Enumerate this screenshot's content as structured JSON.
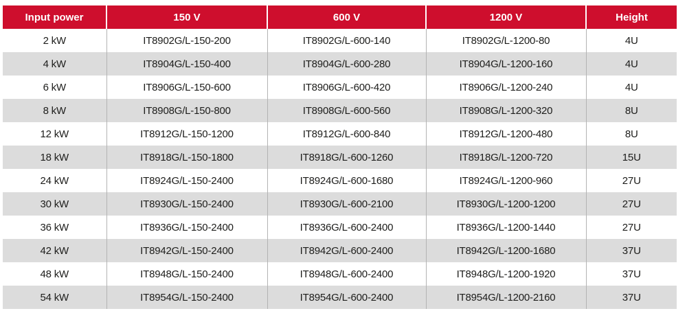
{
  "table": {
    "colors": {
      "header_bg": "#ce0e2d",
      "header_text": "#ffffff",
      "row_alt_bg": "#dcdcdc",
      "divider": "#b3b3b3",
      "body_text": "#1d1d1b"
    },
    "columns": [
      {
        "key": "power",
        "label": "Input power"
      },
      {
        "key": "v150",
        "label": "150 V"
      },
      {
        "key": "v600",
        "label": "600 V"
      },
      {
        "key": "v1200",
        "label": "1200 V"
      },
      {
        "key": "height",
        "label": "Height"
      }
    ],
    "rows": [
      {
        "power": "2 kW",
        "v150": "IT8902G/L-150-200",
        "v600": "IT8902G/L-600-140",
        "v1200": "IT8902G/L-1200-80",
        "height": "4U"
      },
      {
        "power": "4 kW",
        "v150": "IT8904G/L-150-400",
        "v600": "IT8904G/L-600-280",
        "v1200": "IT8904G/L-1200-160",
        "height": "4U"
      },
      {
        "power": "6 kW",
        "v150": "IT8906G/L-150-600",
        "v600": "IT8906G/L-600-420",
        "v1200": "IT8906G/L-1200-240",
        "height": "4U"
      },
      {
        "power": "8 kW",
        "v150": "IT8908G/L-150-800",
        "v600": "IT8908G/L-600-560",
        "v1200": "IT8908G/L-1200-320",
        "height": "8U"
      },
      {
        "power": "12 kW",
        "v150": "IT8912G/L-150-1200",
        "v600": "IT8912G/L-600-840",
        "v1200": "IT8912G/L-1200-480",
        "height": "8U"
      },
      {
        "power": "18 kW",
        "v150": "IT8918G/L-150-1800",
        "v600": "IT8918G/L-600-1260",
        "v1200": "IT8918G/L-1200-720",
        "height": "15U"
      },
      {
        "power": "24 kW",
        "v150": "IT8924G/L-150-2400",
        "v600": "IT8924G/L-600-1680",
        "v1200": "IT8924G/L-1200-960",
        "height": "27U"
      },
      {
        "power": "30 kW",
        "v150": "IT8930G/L-150-2400",
        "v600": "IT8930G/L-600-2100",
        "v1200": "IT8930G/L-1200-1200",
        "height": "27U"
      },
      {
        "power": "36 kW",
        "v150": "IT8936G/L-150-2400",
        "v600": "IT8936G/L-600-2400",
        "v1200": "IT8936G/L-1200-1440",
        "height": "27U"
      },
      {
        "power": "42 kW",
        "v150": "IT8942G/L-150-2400",
        "v600": "IT8942G/L-600-2400",
        "v1200": "IT8942G/L-1200-1680",
        "height": "37U"
      },
      {
        "power": "48 kW",
        "v150": "IT8948G/L-150-2400",
        "v600": "IT8948G/L-600-2400",
        "v1200": "IT8948G/L-1200-1920",
        "height": "37U"
      },
      {
        "power": "54 kW",
        "v150": "IT8954G/L-150-2400",
        "v600": "IT8954G/L-600-2400",
        "v1200": "IT8954G/L-1200-2160",
        "height": "37U"
      }
    ]
  }
}
